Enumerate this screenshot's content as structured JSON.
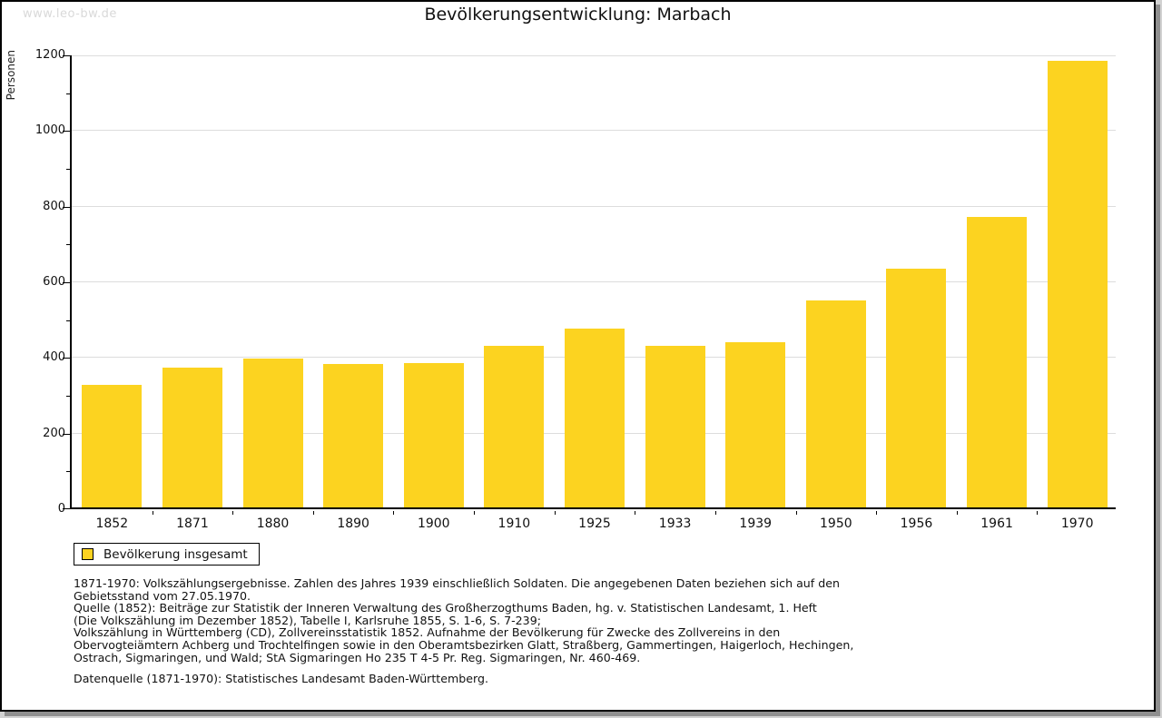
{
  "page": {
    "watermark": "www.leo-bw.de"
  },
  "chart_data": {
    "type": "bar",
    "title": "Bevölkerungsentwicklung: Marbach",
    "xlabel": "",
    "ylabel": "Personen",
    "categories": [
      "1852",
      "1871",
      "1880",
      "1890",
      "1900",
      "1910",
      "1925",
      "1933",
      "1939",
      "1950",
      "1956",
      "1961",
      "1970"
    ],
    "series": [
      {
        "name": "Bevölkerung insgesamt",
        "color": "#fcd320",
        "values": [
          325,
          370,
          394,
          378,
          381,
          426,
          473,
          428,
          437,
          547,
          630,
          768,
          1180
        ]
      }
    ],
    "ylim": [
      0,
      1200
    ],
    "ytick_step": 200,
    "yminor_step": 100,
    "grid": true,
    "gridline_color": "#dddddd",
    "legend_position": "bottom-left"
  },
  "legend": {
    "label": "Bevölkerung insgesamt",
    "swatch_color": "#fcd320"
  },
  "footer": {
    "notes": [
      "1871-1970: Volkszählungsergebnisse. Zahlen des Jahres 1939 einschließlich Soldaten. Die angegebenen Daten beziehen sich auf den",
      "Gebietsstand vom 27.05.1970.",
      "Quelle (1852): Beiträge zur Statistik der Inneren Verwaltung des Großherzogthums Baden, hg. v. Statistischen Landesamt, 1. Heft",
      "(Die Volkszählung im Dezember 1852), Tabelle I, Karlsruhe 1855, S. 1-6, S. 7-239;",
      "Volkszählung in Württemberg (CD), Zollvereinsstatistik 1852. Aufnahme der Bevölkerung für Zwecke des Zollvereins in den",
      "Obervogteiämtern Achberg und Trochtelfingen sowie in den Oberamtsbezirken Glatt, Straßberg, Gammertingen, Haigerloch, Hechingen,",
      "Ostrach, Sigmaringen, und Wald; StA Sigmaringen Ho 235 T 4-5 Pr. Reg. Sigmaringen, Nr. 460-469."
    ],
    "datasource": "Datenquelle (1871-1970): Statistisches Landesamt Baden-Württemberg."
  },
  "colors": {
    "bar": "#fcd320",
    "grid": "#dddddd",
    "axis": "#000000",
    "watermark": "#d9d9d9",
    "shadow": "#8f8f8f"
  }
}
